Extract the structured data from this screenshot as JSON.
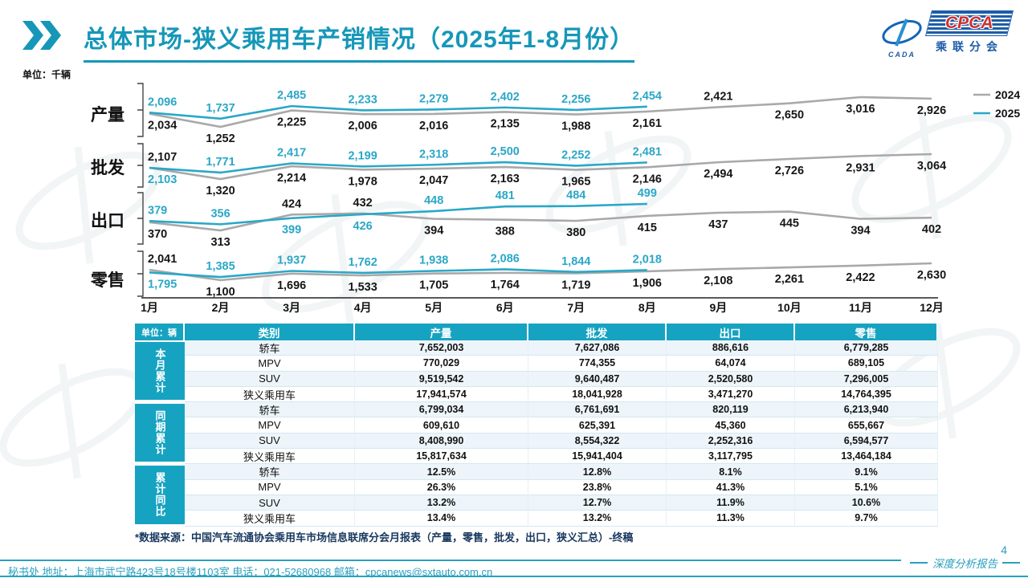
{
  "header": {
    "title": "总体市场-狭义乘用车产销情况（2025年1-8月份）",
    "logo": {
      "cpca": "CPCA",
      "cada": "CADA",
      "subtitle": "乘联分会"
    }
  },
  "chart_data": {
    "type": "line",
    "unit_label": "单位：千辆",
    "x_labels": [
      "1月",
      "2月",
      "3月",
      "4月",
      "5月",
      "6月",
      "7月",
      "8月",
      "9月",
      "10月",
      "11月",
      "12月"
    ],
    "legend": [
      {
        "name": "2024",
        "color": "#a9a9a9"
      },
      {
        "name": "2025",
        "color": "#2aa7c7"
      }
    ],
    "rows": [
      {
        "label": "产量",
        "series": [
          {
            "name": "2024",
            "values": [
              2034,
              1252,
              2225,
              2006,
              2016,
              2135,
              1988,
              2161,
              2421,
              2650,
              3016,
              2926
            ]
          },
          {
            "name": "2025",
            "values": [
              2096,
              1737,
              2485,
              2233,
              2279,
              2402,
              2256,
              2454
            ]
          }
        ]
      },
      {
        "label": "批发",
        "series": [
          {
            "name": "2024",
            "values": [
              2107,
              1320,
              2214,
              1978,
              2047,
              2163,
              1965,
              2146,
              2494,
              2726,
              2931,
              3064
            ]
          },
          {
            "name": "2025",
            "values": [
              2103,
              1771,
              2417,
              2199,
              2318,
              2500,
              2252,
              2481
            ]
          }
        ]
      },
      {
        "label": "出口",
        "series": [
          {
            "name": "2024",
            "values": [
              370,
              313,
              424,
              432,
              394,
              388,
              380,
              415,
              437,
              445,
              394,
              402
            ]
          },
          {
            "name": "2025",
            "values": [
              379,
              356,
              399,
              426,
              448,
              481,
              484,
              499
            ]
          }
        ]
      },
      {
        "label": "零售",
        "series": [
          {
            "name": "2024",
            "values": [
              2041,
              1100,
              1696,
              1533,
              1705,
              1764,
              1719,
              1906,
              2108,
              2261,
              2422,
              2630
            ]
          },
          {
            "name": "2025",
            "values": [
              1795,
              1385,
              1937,
              1762,
              1938,
              2086,
              1844,
              2018
            ]
          }
        ]
      }
    ]
  },
  "table": {
    "unit_label": "单位：辆",
    "columns": [
      "类别",
      "产量",
      "批发",
      "出口",
      "零售"
    ],
    "sections": [
      {
        "label": "本月累计",
        "rows": [
          [
            "轿车",
            "7,652,003",
            "7,627,086",
            "886,616",
            "6,779,285"
          ],
          [
            "MPV",
            "770,029",
            "774,355",
            "64,074",
            "689,105"
          ],
          [
            "SUV",
            "9,519,542",
            "9,640,487",
            "2,520,580",
            "7,296,005"
          ],
          [
            "狭义乘用车",
            "17,941,574",
            "18,041,928",
            "3,471,270",
            "14,764,395"
          ]
        ]
      },
      {
        "label": "同期累计",
        "rows": [
          [
            "轿车",
            "6,799,034",
            "6,761,691",
            "820,119",
            "6,213,940"
          ],
          [
            "MPV",
            "609,610",
            "625,391",
            "45,360",
            "655,667"
          ],
          [
            "SUV",
            "8,408,990",
            "8,554,322",
            "2,252,316",
            "6,594,577"
          ],
          [
            "狭义乘用车",
            "15,817,634",
            "15,941,404",
            "3,117,795",
            "13,464,184"
          ]
        ]
      },
      {
        "label": "累计同比",
        "rows": [
          [
            "轿车",
            "12.5%",
            "12.8%",
            "8.1%",
            "9.1%"
          ],
          [
            "MPV",
            "26.3%",
            "23.8%",
            "41.3%",
            "5.1%"
          ],
          [
            "SUV",
            "13.2%",
            "12.7%",
            "11.9%",
            "10.6%"
          ],
          [
            "狭义乘用车",
            "13.4%",
            "13.2%",
            "11.3%",
            "9.7%"
          ]
        ]
      }
    ],
    "source_note": "*数据来源：中国汽车流通协会乘用车市场信息联席分会月报表（产量，零售，批发，出口，狭义汇总）-终稿"
  },
  "footer": {
    "contact": "秘书处  地址：上海市武宁路423号18号楼1103室  电话：021-52680968  邮箱：cpcanews@sxtauto.com.cn",
    "report_label": "深度分析报告",
    "page_number": "4"
  }
}
